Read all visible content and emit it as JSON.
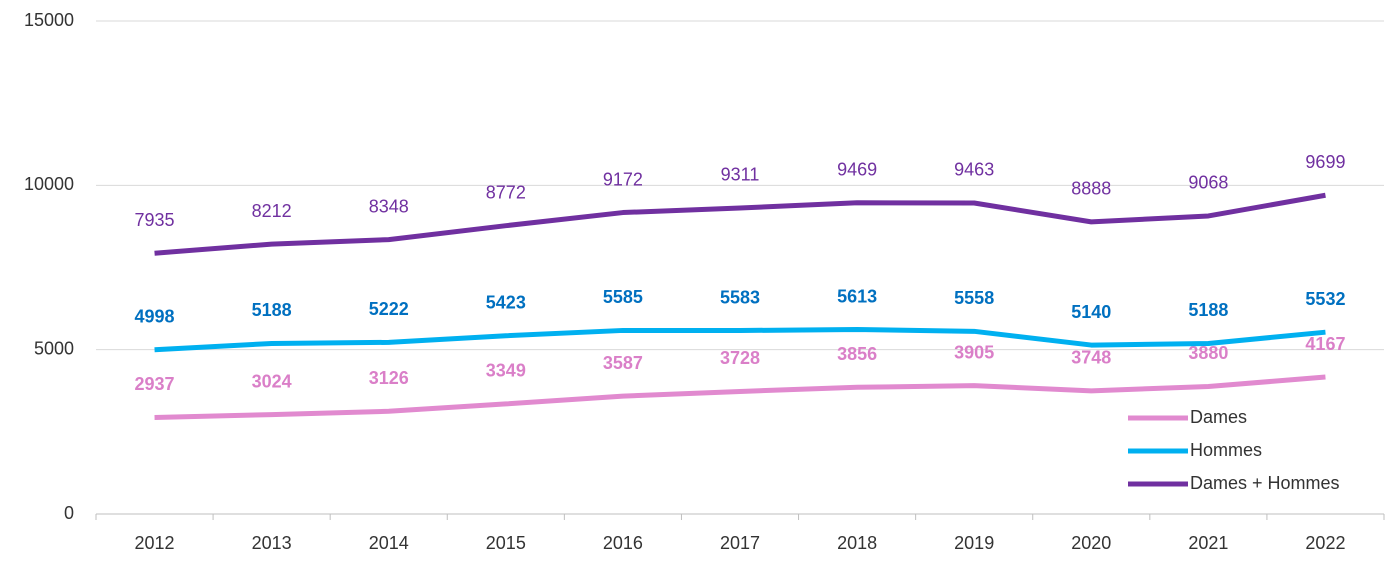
{
  "chart_data": {
    "type": "line",
    "categories": [
      "2012",
      "2013",
      "2014",
      "2015",
      "2016",
      "2017",
      "2018",
      "2019",
      "2020",
      "2021",
      "2022"
    ],
    "series": [
      {
        "name": "Dames",
        "color": "#e18acf",
        "label_color": "#da7fc8",
        "label_bold": true,
        "values": [
          2937,
          3024,
          3126,
          3349,
          3587,
          3728,
          3856,
          3905,
          3748,
          3880,
          4167
        ]
      },
      {
        "name": "Hommes",
        "color": "#00b0f0",
        "label_color": "#0070c0",
        "label_bold": true,
        "values": [
          4998,
          5188,
          5222,
          5423,
          5585,
          5583,
          5613,
          5558,
          5140,
          5188,
          5532
        ]
      },
      {
        "name": "Dames + Hommes",
        "color": "#7030a0",
        "label_color": "#7030a0",
        "label_bold": false,
        "values": [
          7935,
          8212,
          8348,
          8772,
          9172,
          9311,
          9469,
          9463,
          8888,
          9068,
          9699
        ]
      }
    ],
    "ylim": [
      0,
      15000
    ],
    "yticks": [
      0,
      5000,
      10000,
      15000
    ],
    "grid": true,
    "legend": "lower right"
  }
}
